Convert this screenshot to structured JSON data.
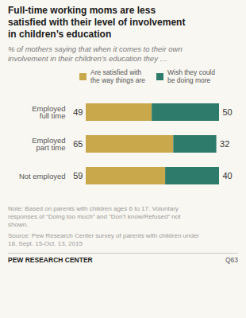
{
  "chart_data": {
    "type": "bar",
    "orientation": "horizontal",
    "stacked": true,
    "title": "Full-time working moms are less\nsatisfied with their level of involvement\nin children’s education",
    "subtitle": "% of mothers saying that when it comes to their own\ninvolvement in their children’s education they …",
    "categories": [
      "Employed\nfull time",
      "Employed\npart time",
      "Not employed"
    ],
    "series": [
      {
        "name": "Are satisfied with\nthe way things are",
        "color": "#C9A84C",
        "values": [
          49,
          65,
          59
        ]
      },
      {
        "name": "Wish they could\nbe doing more",
        "color": "#2E7B6B",
        "values": [
          50,
          32,
          40
        ]
      }
    ],
    "data_labels": true,
    "tick_labels": "y",
    "grid": false,
    "note": "Note: Based on parents with children ages 6 to 17. Voluntary\nresponses of “Doing too much” and “Don’t know/Refused” not\nshown.",
    "source": "Source: Pew Research Center survey of parents with children under\n18, Sept. 15-Oct. 13, 2015",
    "footer_left": "PEW RESEARCH CENTER",
    "footer_right": "Q63"
  }
}
